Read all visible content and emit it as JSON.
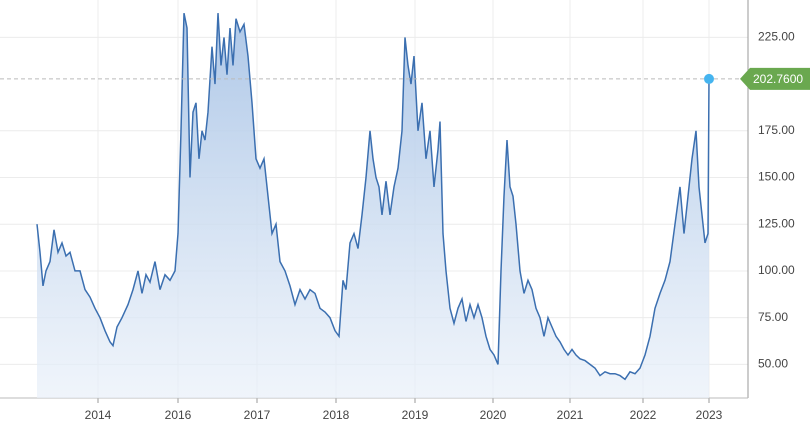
{
  "chart_data": {
    "type": "area",
    "color": "#3b6fb0",
    "x": [
      18.5,
      20,
      21.5,
      23,
      25,
      27,
      29,
      31,
      33,
      35,
      37.5,
      40,
      42.5,
      45,
      47.5,
      50,
      52.5,
      55,
      56.5,
      58.5,
      61,
      64,
      66.5,
      69,
      71,
      73,
      75,
      77.5,
      80,
      82.5,
      85,
      87.5,
      89,
      90.5,
      92,
      93.5,
      95,
      96.5,
      98,
      99.5,
      101,
      102.5,
      104,
      106,
      107.5,
      109,
      110.5,
      112,
      113.5,
      115,
      116.5,
      118,
      120,
      122,
      124,
      126,
      128,
      130,
      132,
      134,
      136,
      138,
      140,
      142.5,
      145,
      147.5,
      150,
      152.5,
      155,
      157.5,
      160,
      162.5,
      165,
      167.5,
      169.5,
      171.5,
      173,
      175,
      177,
      179,
      181,
      183,
      185,
      186.5,
      188,
      189.5,
      191,
      193,
      195,
      197,
      199,
      201,
      202.5,
      204,
      205.5,
      207,
      209,
      211,
      213,
      215,
      217,
      219,
      220,
      221.5,
      223,
      225,
      227,
      229,
      231,
      233,
      235,
      237,
      239,
      241,
      243,
      245,
      247,
      249,
      250.5,
      252,
      253.5,
      255,
      256.5,
      258,
      260,
      262,
      264,
      266,
      268,
      270,
      272,
      274,
      276,
      278,
      280,
      282,
      284,
      286,
      288,
      290,
      292.5,
      295,
      297.5,
      300,
      302.5,
      305,
      307.5,
      310,
      312.5,
      315,
      317.5,
      320,
      322.5,
      325,
      327.5,
      330,
      332.5,
      335,
      337.5,
      340,
      342,
      344,
      346,
      348,
      349.5,
      351,
      352.5,
      354,
      354.5
    ],
    "values": [
      125,
      110,
      92,
      100,
      105,
      122,
      110,
      115,
      108,
      110,
      100,
      100,
      90,
      86,
      80,
      75,
      68,
      62,
      60,
      70,
      75,
      82,
      90,
      100,
      88,
      98,
      94,
      105,
      90,
      98,
      95,
      100,
      120,
      175,
      238,
      230,
      150,
      185,
      190,
      160,
      175,
      170,
      185,
      220,
      200,
      238,
      210,
      225,
      205,
      230,
      210,
      235,
      228,
      232,
      215,
      190,
      160,
      155,
      160,
      140,
      120,
      125,
      105,
      100,
      92,
      82,
      90,
      85,
      90,
      88,
      80,
      78,
      75,
      68,
      65,
      95,
      90,
      115,
      120,
      112,
      130,
      150,
      175,
      160,
      150,
      145,
      130,
      148,
      130,
      145,
      155,
      175,
      225,
      210,
      200,
      215,
      175,
      190,
      160,
      175,
      145,
      165,
      180,
      120,
      100,
      80,
      72,
      80,
      85,
      73,
      82,
      75,
      82,
      75,
      65,
      58,
      55,
      50,
      100,
      140,
      170,
      145,
      140,
      125,
      100,
      88,
      95,
      90,
      80,
      75,
      65,
      75,
      70,
      65,
      62,
      58,
      55,
      58,
      55,
      53,
      52,
      50,
      48,
      44,
      46,
      45,
      45,
      44,
      42,
      46,
      45,
      48,
      55,
      65,
      80,
      88,
      95,
      105,
      125,
      145,
      120,
      140,
      160,
      175,
      145,
      130,
      115,
      120,
      202.76
    ],
    "last_label": "202.7600",
    "xlim": [
      0,
      374
    ],
    "ylim": [
      32,
      245
    ],
    "xticks": [
      {
        "value": 49,
        "label": "2014"
      },
      {
        "value": 89,
        "label": "2016"
      },
      {
        "value": 128.5,
        "label": "2017"
      },
      {
        "value": 168,
        "label": "2018"
      },
      {
        "value": 207.5,
        "label": "2019"
      },
      {
        "value": 246.5,
        "label": "2020"
      },
      {
        "value": 285,
        "label": "2021"
      },
      {
        "value": 321.5,
        "label": "2022"
      },
      {
        "value": 354.5,
        "label": "2023"
      }
    ],
    "yticks": [
      {
        "value": 50,
        "label": "50.00"
      },
      {
        "value": 75,
        "label": "75.00"
      },
      {
        "value": 100,
        "label": "100.00"
      },
      {
        "value": 125,
        "label": "125.00"
      },
      {
        "value": 150,
        "label": "150.00"
      },
      {
        "value": 175,
        "label": "175.00"
      },
      {
        "value": 225,
        "label": "225.00"
      }
    ],
    "grid": true
  }
}
